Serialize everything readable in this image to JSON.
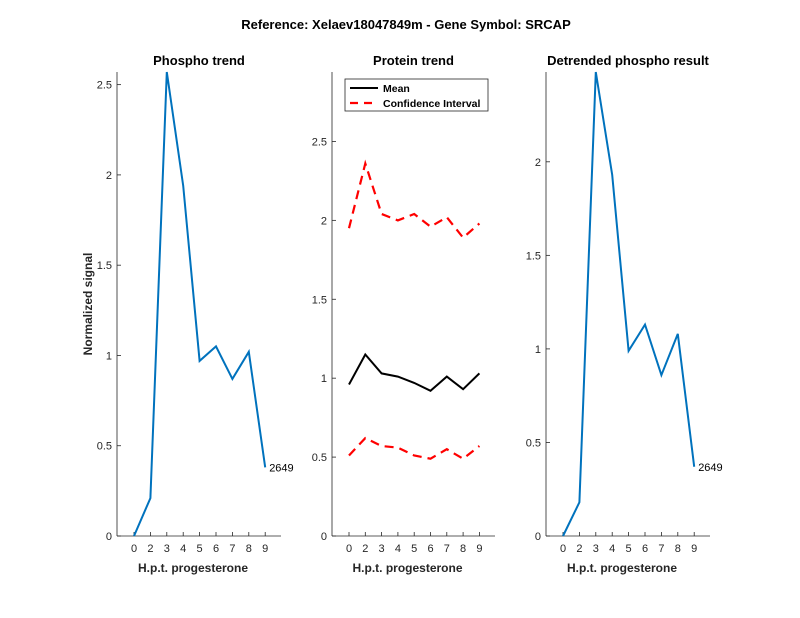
{
  "chart_data": {
    "suptitle": "Reference:  Xelaev18047849m - Gene Symbol:  SRCAP",
    "panels": [
      {
        "id": "phospho",
        "type": "line",
        "title": "Phospho trend",
        "xlabel": "H.p.t. progesterone",
        "ylabel": "Normalized signal",
        "x_tick_labels": [
          "0",
          "2",
          "3",
          "4",
          "5",
          "6",
          "7",
          "8",
          "9"
        ],
        "y_ticks": [
          0,
          0.5,
          1,
          1.5,
          2,
          2.5
        ],
        "y_tick_labels": [
          "0",
          "0.5",
          "1",
          "1.5",
          "2",
          "2.5"
        ],
        "ylim": [
          0,
          2.57
        ],
        "series": [
          {
            "name": "phospho",
            "color": "#0072BD",
            "style": "solid",
            "values": [
              0,
              0.21,
              2.57,
              1.94,
              0.97,
              1.05,
              0.87,
              1.02,
              0.38
            ]
          }
        ],
        "annotation": "2649"
      },
      {
        "id": "protein",
        "type": "line",
        "title": "Protein trend",
        "xlabel": "H.p.t. progesterone",
        "ylabel": "",
        "x_tick_labels": [
          "0",
          "2",
          "3",
          "4",
          "5",
          "6",
          "7",
          "8",
          "9"
        ],
        "y_ticks": [
          0,
          0.5,
          1,
          1.5,
          2,
          2.5
        ],
        "y_tick_labels": [
          "0",
          "0.5",
          "1",
          "1.5",
          "2",
          "2.5"
        ],
        "ylim": [
          0,
          2.94
        ],
        "legend": {
          "position": "top-left",
          "entries": [
            "Mean",
            "Confidence Interval"
          ]
        },
        "series": [
          {
            "name": "Mean",
            "color": "#000000",
            "style": "solid",
            "values": [
              0.96,
              1.15,
              1.03,
              1.01,
              0.97,
              0.92,
              1.01,
              0.93,
              1.03
            ]
          },
          {
            "name": "Confidence Interval",
            "color": "#FF0000",
            "style": "dashed",
            "values": [
              1.95,
              2.36,
              2.04,
              2.0,
              2.04,
              1.96,
              2.02,
              1.89,
              1.98
            ]
          },
          {
            "name": "Confidence Interval lower",
            "color": "#FF0000",
            "style": "dashed",
            "values": [
              0.51,
              0.62,
              0.57,
              0.56,
              0.51,
              0.49,
              0.55,
              0.49,
              0.57
            ]
          }
        ]
      },
      {
        "id": "detrended",
        "type": "line",
        "title": "Detrended phospho result",
        "xlabel": "H.p.t. progesterone",
        "ylabel": "",
        "x_tick_labels": [
          "0",
          "2",
          "3",
          "4",
          "5",
          "6",
          "7",
          "8",
          "9"
        ],
        "y_ticks": [
          0,
          0.5,
          1,
          1.5,
          2
        ],
        "y_tick_labels": [
          "0",
          "0.5",
          "1",
          "1.5",
          "2"
        ],
        "ylim": [
          0,
          2.48
        ],
        "series": [
          {
            "name": "detrended",
            "color": "#0072BD",
            "style": "solid",
            "values": [
              0,
              0.18,
              2.48,
              1.93,
              0.99,
              1.13,
              0.86,
              1.08,
              0.37
            ]
          }
        ],
        "annotation": "2649"
      }
    ]
  }
}
